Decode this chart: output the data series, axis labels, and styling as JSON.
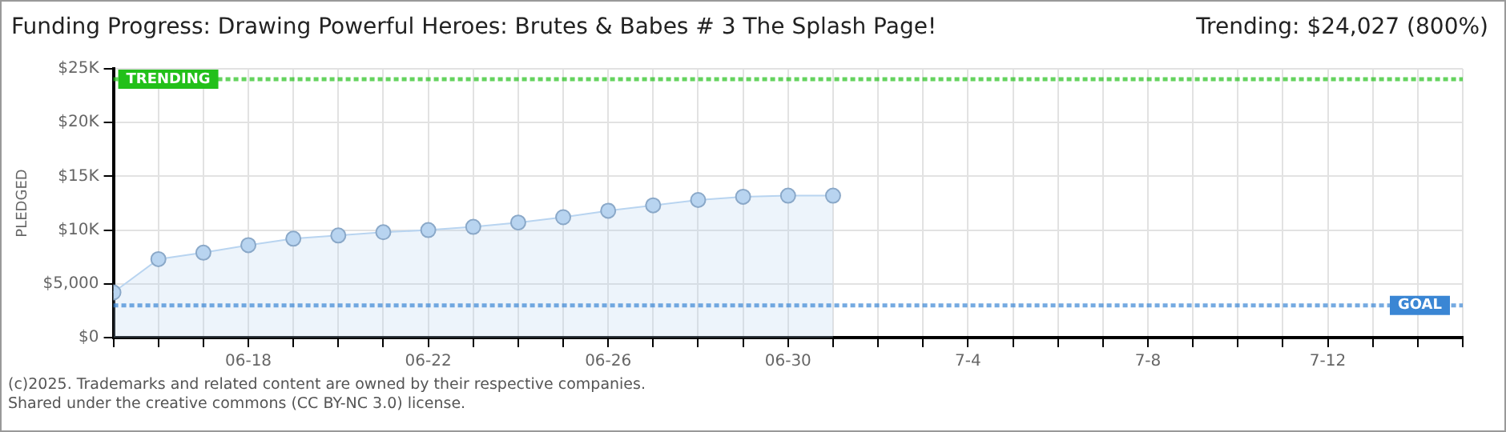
{
  "chart_data": {
    "type": "area",
    "title": "Funding Progress: Drawing Powerful Heroes: Brutes & Babes # 3 The Splash Page!",
    "ylabel": "PLEDGED",
    "annotations": [
      "Trending:  $24,027 (800%)",
      "(c)2025. Trademarks and related content are owned by their respective companies.",
      "Shared under the creative commons (CC BY-NC 3.0) license."
    ],
    "x": [
      "--06-15",
      "--06-16",
      "--06-17",
      "--06-18",
      "--06-19",
      "--06-20",
      "--06-21",
      "--06-22",
      "--06-23",
      "--06-24",
      "--06-25",
      "--06-26",
      "--06-27",
      "--06-28",
      "--06-29",
      "--06-30",
      "--07-01"
    ],
    "series": [
      {
        "color": "#b8d4f0",
        "values": [
          4200,
          7300,
          7900,
          8600,
          9200,
          9500,
          9800,
          10000,
          10300,
          10700,
          11200,
          11800,
          12300,
          12800,
          13100,
          13200,
          13200
        ]
      }
    ],
    "xlim": [
      "--06-15",
      "--07-15"
    ],
    "xticks": [
      {
        "value": "--06-15",
        "label": null
      },
      {
        "value": "--06-16",
        "label": null
      },
      {
        "value": "--06-17",
        "label": null
      },
      {
        "value": "--06-18",
        "label": "06-18"
      },
      {
        "value": "--06-19",
        "label": null
      },
      {
        "value": "--06-20",
        "label": null
      },
      {
        "value": "--06-21",
        "label": null
      },
      {
        "value": "--06-22",
        "label": "06-22"
      },
      {
        "value": "--06-23",
        "label": null
      },
      {
        "value": "--06-24",
        "label": null
      },
      {
        "value": "--06-25",
        "label": null
      },
      {
        "value": "--06-26",
        "label": "06-26"
      },
      {
        "value": "--06-27",
        "label": null
      },
      {
        "value": "--06-28",
        "label": null
      },
      {
        "value": "--06-29",
        "label": null
      },
      {
        "value": "--06-30",
        "label": "06-30"
      },
      {
        "value": "--07-01",
        "label": null
      },
      {
        "value": "--07-02",
        "label": null
      },
      {
        "value": "--07-03",
        "label": null
      },
      {
        "value": "--07-04",
        "label": "7-4"
      },
      {
        "value": "--07-05",
        "label": null
      },
      {
        "value": "--07-06",
        "label": null
      },
      {
        "value": "--07-07",
        "label": null
      },
      {
        "value": "--07-08",
        "label": "7-8"
      },
      {
        "value": "--07-09",
        "label": null
      },
      {
        "value": "--07-10",
        "label": null
      },
      {
        "value": "--07-11",
        "label": null
      },
      {
        "value": "--07-12",
        "label": "7-12"
      },
      {
        "value": "--07-13",
        "label": null
      },
      {
        "value": "--07-14",
        "label": null
      },
      {
        "value": "--07-15",
        "label": null
      }
    ],
    "ylim": [
      0,
      25000
    ],
    "yticks": [
      {
        "value": 0,
        "label": "$0"
      },
      {
        "value": 5000,
        "label": "$5,000"
      },
      {
        "value": 10000,
        "label": "$10K"
      },
      {
        "value": 15000,
        "label": "$15K"
      },
      {
        "value": 20000,
        "label": "$20K"
      },
      {
        "value": 25000,
        "label": "$25K"
      }
    ],
    "ref_lines": [
      {
        "axis": "y",
        "value": 24027,
        "label": "TRENDING",
        "color": "#22c01a",
        "line_style": "dotted"
      },
      {
        "axis": "y",
        "value": 3000,
        "label": "GOAL",
        "color": "#3a86d4",
        "line_style": "dotted"
      }
    ],
    "grid": true,
    "marker": "circle",
    "legend": false
  }
}
